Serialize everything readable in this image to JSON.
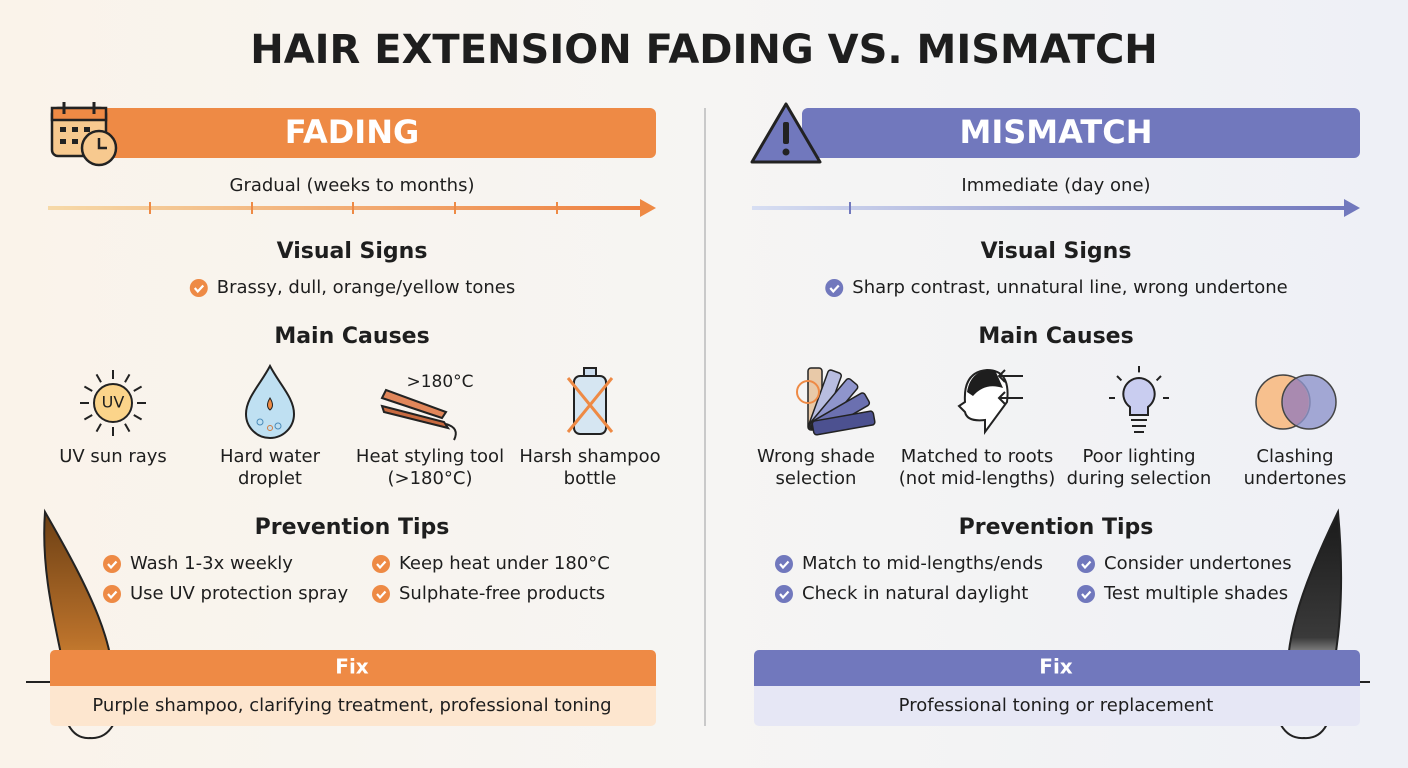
{
  "title": "HAIR EXTENSION FADING VS. MISMATCH",
  "panels": [
    {
      "heading": "FADING",
      "timeline": "Gradual (weeks to months)",
      "visual_signs_heading": "Visual Signs",
      "visual_signs": [
        "Brassy, dull, orange/yellow tones"
      ],
      "causes_heading": "Main Causes",
      "causes": [
        {
          "icon_text": "UV",
          "label": [
            "UV sun rays"
          ]
        },
        {
          "label": [
            "Hard water",
            "droplet"
          ]
        },
        {
          "icon_text": ">180°C",
          "label": [
            "Heat styling tool",
            "(>180°C)"
          ]
        },
        {
          "label": [
            "Harsh shampoo",
            "bottle"
          ]
        }
      ],
      "prevention_heading": "Prevention Tips",
      "tips": [
        "Wash 1-3x weekly",
        "Keep heat under 180°C",
        "Use UV protection spray",
        "Sulphate-free products"
      ],
      "fix_heading": "Fix",
      "fix": "Purple shampoo, clarifying treatment, professional toning"
    },
    {
      "heading": "MISMATCH",
      "timeline": "Immediate (day one)",
      "visual_signs_heading": "Visual Signs",
      "visual_signs": [
        "Sharp contrast, unnatural line, wrong undertone"
      ],
      "causes_heading": "Main Causes",
      "causes": [
        {
          "label": [
            "Wrong shade",
            "selection"
          ]
        },
        {
          "label": [
            "Matched to roots",
            "(not mid-lengths)"
          ]
        },
        {
          "label": [
            "Poor lighting",
            "during selection"
          ]
        },
        {
          "label": [
            "Clashing",
            "undertones"
          ]
        }
      ],
      "prevention_heading": "Prevention Tips",
      "tips": [
        "Match to mid-lengths/ends",
        "Consider undertones",
        "Check in natural daylight",
        "Test multiple shades"
      ],
      "fix_heading": "Fix",
      "fix": "Professional toning or replacement"
    }
  ]
}
